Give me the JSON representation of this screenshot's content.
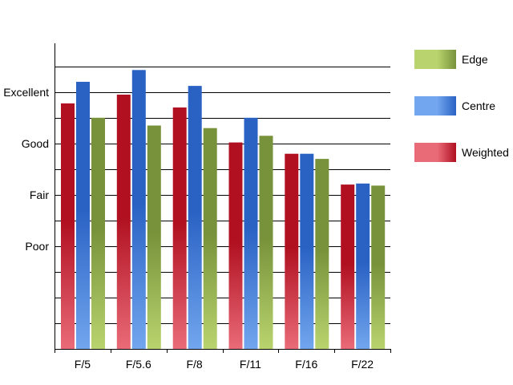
{
  "chart_data": {
    "type": "bar",
    "categories": [
      "F/5",
      "F/5.6",
      "F/8",
      "F/11",
      "F/16",
      "F/22"
    ],
    "series": [
      {
        "name": "Weighted",
        "key": "weighted",
        "values": [
          3.78,
          3.95,
          3.7,
          3.02,
          2.8,
          2.2
        ]
      },
      {
        "name": "Centre",
        "key": "centre",
        "values": [
          4.2,
          4.43,
          4.12,
          3.5,
          2.8,
          2.22
        ]
      },
      {
        "name": "Edge",
        "key": "edge",
        "values": [
          3.5,
          3.35,
          3.3,
          3.15,
          2.7,
          2.18
        ]
      }
    ],
    "y_ticks": [
      {
        "value": 1,
        "label": "Poor"
      },
      {
        "value": 2,
        "label": "Fair"
      },
      {
        "value": 3,
        "label": "Good"
      },
      {
        "value": 4,
        "label": "Excellent"
      }
    ],
    "ylim": [
      -1,
      4.95
    ],
    "grid": true,
    "legend_position": "right",
    "legend_order": [
      "edge",
      "centre",
      "weighted"
    ],
    "colors": {
      "weighted": {
        "dark": "#b01020",
        "light": "#ea6b78"
      },
      "centre": {
        "dark": "#2a62c4",
        "light": "#72a6ee"
      },
      "edge": {
        "dark": "#77923a",
        "light": "#b9d46e"
      },
      "grid": "#000000"
    }
  }
}
